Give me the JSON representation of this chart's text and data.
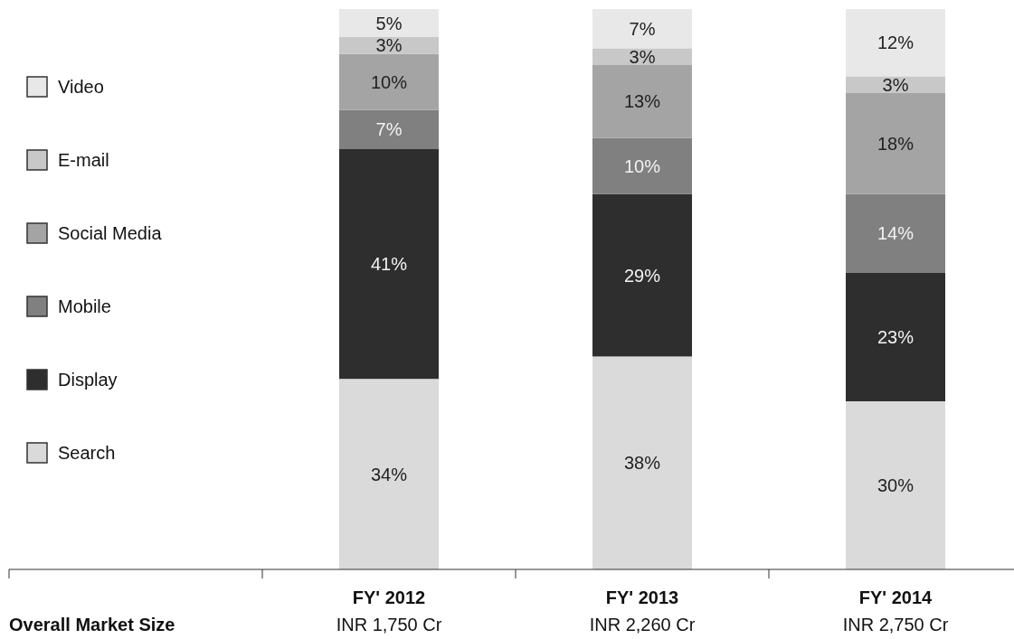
{
  "chart_data": {
    "type": "bar",
    "stacked": true,
    "categories": [
      "FY' 2012",
      "FY' 2013",
      "FY' 2014"
    ],
    "legend": "left",
    "series": [
      {
        "name": "Search",
        "color": "#dadada",
        "values": [
          34,
          38,
          30
        ],
        "value_labels": [
          "34%",
          "38%",
          "30%"
        ]
      },
      {
        "name": "Display",
        "color": "#2e2e2e",
        "values": [
          41,
          29,
          23
        ],
        "value_labels": [
          "41%",
          "29%",
          "23%"
        ]
      },
      {
        "name": "Mobile",
        "color": "#808080",
        "values": [
          7,
          10,
          14
        ],
        "value_labels": [
          "7%",
          "10%",
          "14%"
        ]
      },
      {
        "name": "Social Media",
        "color": "#a4a4a4",
        "values": [
          10,
          13,
          18
        ],
        "value_labels": [
          "10%",
          "13%",
          "18%"
        ]
      },
      {
        "name": "E-mail",
        "color": "#c8c8c8",
        "values": [
          3,
          3,
          3
        ],
        "value_labels": [
          "3%",
          "3%",
          "3%"
        ]
      },
      {
        "name": "Video",
        "color": "#e8e8e8",
        "values": [
          5,
          7,
          12
        ],
        "value_labels": [
          "5%",
          "7%",
          "12%"
        ]
      }
    ],
    "annotations": [
      "Overall Market Size",
      "INR 1,750 Cr",
      "INR 2,260 Cr",
      "INR 2,750 Cr"
    ]
  }
}
